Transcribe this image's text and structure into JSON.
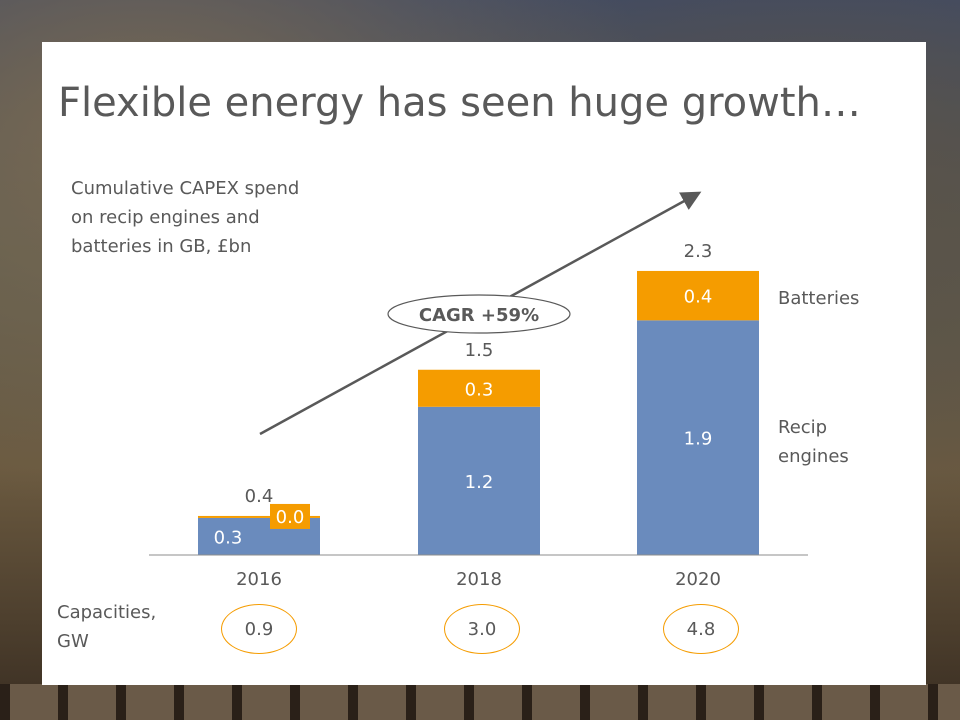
{
  "slide": {
    "title": "Flexible energy has seen huge growth…",
    "subtitle_lines": [
      "Cumulative CAPEX spend",
      "on recip engines and",
      "batteries in GB, £bn"
    ]
  },
  "chart_data": {
    "type": "bar",
    "stacked": true,
    "categories": [
      "2016",
      "2018",
      "2020"
    ],
    "series": [
      {
        "name": "Recip engines",
        "values": [
          0.3,
          1.2,
          1.9
        ],
        "color": "#6a8bbd"
      },
      {
        "name": "Batteries",
        "values": [
          0.0,
          0.3,
          0.4
        ],
        "color": "#f59c00"
      }
    ],
    "totals": [
      0.4,
      1.5,
      2.3
    ],
    "value_labels": {
      "recip": [
        "0.3",
        "1.2",
        "1.9"
      ],
      "batteries": [
        "0.0",
        "0.3",
        "0.4"
      ],
      "totals": [
        "0.4",
        "1.5",
        "2.3"
      ]
    },
    "legend_labels": {
      "batteries": "Batteries",
      "recip": [
        "Recip",
        "engines"
      ]
    },
    "annotation": "CAGR +59%",
    "ylim": [
      0,
      2.3
    ],
    "grid": false,
    "legend_position": "right"
  },
  "capacities": {
    "label_lines": [
      "Capacities,",
      "GW"
    ],
    "values": [
      "0.9",
      "3.0",
      "4.8"
    ]
  },
  "colors": {
    "recip": "#6a8bbd",
    "batteries": "#f59c00",
    "text": "#595959"
  }
}
